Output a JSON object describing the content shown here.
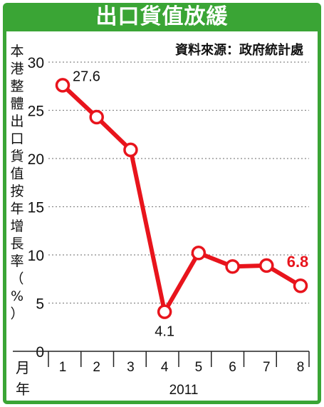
{
  "chart_data": {
    "type": "line",
    "title": "出口貨值放緩",
    "source": "資料來源：政府統計處",
    "ylabel": "本港整體出口貨值按年增長率（%）",
    "x_axis": {
      "month_label": "月",
      "year_label": "年",
      "year": "2011"
    },
    "categories": [
      "1",
      "2",
      "3",
      "4",
      "5",
      "6",
      "7",
      "8"
    ],
    "y_ticks": [
      "0",
      "5",
      "10",
      "15",
      "20",
      "25",
      "30"
    ],
    "ylim": [
      0,
      30
    ],
    "grid": true,
    "series": [
      {
        "values": [
          27.6,
          24.3,
          20.9,
          4.1,
          10.2,
          8.8,
          8.9,
          6.8
        ]
      }
    ],
    "data_labels": [
      {
        "index": 0,
        "text": "27.6"
      },
      {
        "index": 3,
        "text": "4.1"
      },
      {
        "index": 7,
        "text": "6.8"
      }
    ],
    "colors": {
      "accent": "#3aa535",
      "line": "#e8141c",
      "grid": "#888888"
    }
  }
}
